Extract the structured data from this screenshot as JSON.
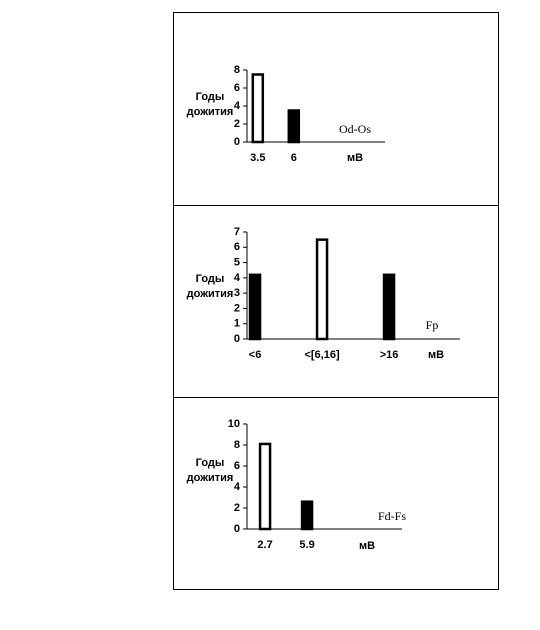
{
  "chart_data": [
    {
      "type": "bar",
      "y_label": [
        "Годы",
        "дожития"
      ],
      "x_label": "мВ",
      "annotation": "Od-Os",
      "categories": [
        "3.5",
        "6"
      ],
      "values": [
        7.5,
        3.5
      ],
      "colors": [
        "#ffffff",
        "#000000"
      ],
      "ylim": [
        0,
        8
      ],
      "yticks": [
        0,
        2,
        4,
        6,
        8
      ]
    },
    {
      "type": "bar",
      "y_label": [
        "Годы",
        "дожития"
      ],
      "x_label": "мВ",
      "annotation": "Fp",
      "categories": [
        "<6",
        "<[6,16]",
        ">16"
      ],
      "values": [
        4.2,
        6.5,
        4.2
      ],
      "colors": [
        "#000000",
        "#ffffff",
        "#000000"
      ],
      "ylim": [
        0,
        7
      ],
      "yticks": [
        0,
        1,
        2,
        3,
        4,
        5,
        6,
        7
      ]
    },
    {
      "type": "bar",
      "y_label": [
        "Годы",
        "дожития"
      ],
      "x_label": "мВ",
      "annotation": "Fd-Fs",
      "categories": [
        "2.7",
        "5.9"
      ],
      "values": [
        8.1,
        2.6
      ],
      "colors": [
        "#ffffff",
        "#000000"
      ],
      "ylim": [
        0,
        10
      ],
      "yticks": [
        0,
        2,
        4,
        6,
        8,
        10
      ]
    }
  ]
}
